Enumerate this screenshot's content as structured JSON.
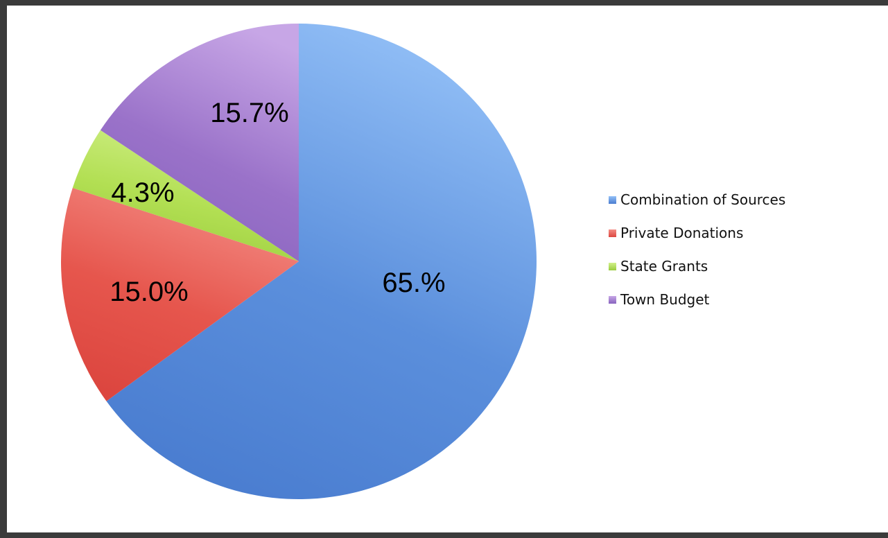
{
  "chart_data": {
    "type": "pie",
    "title": "",
    "start_angle": "12 o'clock",
    "direction": "clockwise",
    "slices": [
      {
        "name": "Combination of Sources",
        "value": 65.0,
        "label": "65.%",
        "color": "#5b8fdc",
        "color_light": "#93c0f7",
        "color_dark": "#4a7dd0"
      },
      {
        "name": "Private Donations",
        "value": 15.0,
        "label": "15.0%",
        "color": "#e6564d",
        "color_light": "#f48d86",
        "color_dark": "#dc463f"
      },
      {
        "name": "State Grants",
        "value": 4.3,
        "label": "4.3%",
        "color": "#b2df53",
        "color_light": "#d2f08a",
        "color_dark": "#9acc3d"
      },
      {
        "name": "Town Budget",
        "value": 15.7,
        "label": "15.7%",
        "color": "#9a72c9",
        "color_light": "#c7a6e6",
        "color_dark": "#8763be"
      }
    ],
    "legend": {
      "placement": "right",
      "entries": [
        "Combination of Sources",
        "Private Donations",
        "State Grants",
        "Town Budget"
      ]
    }
  }
}
